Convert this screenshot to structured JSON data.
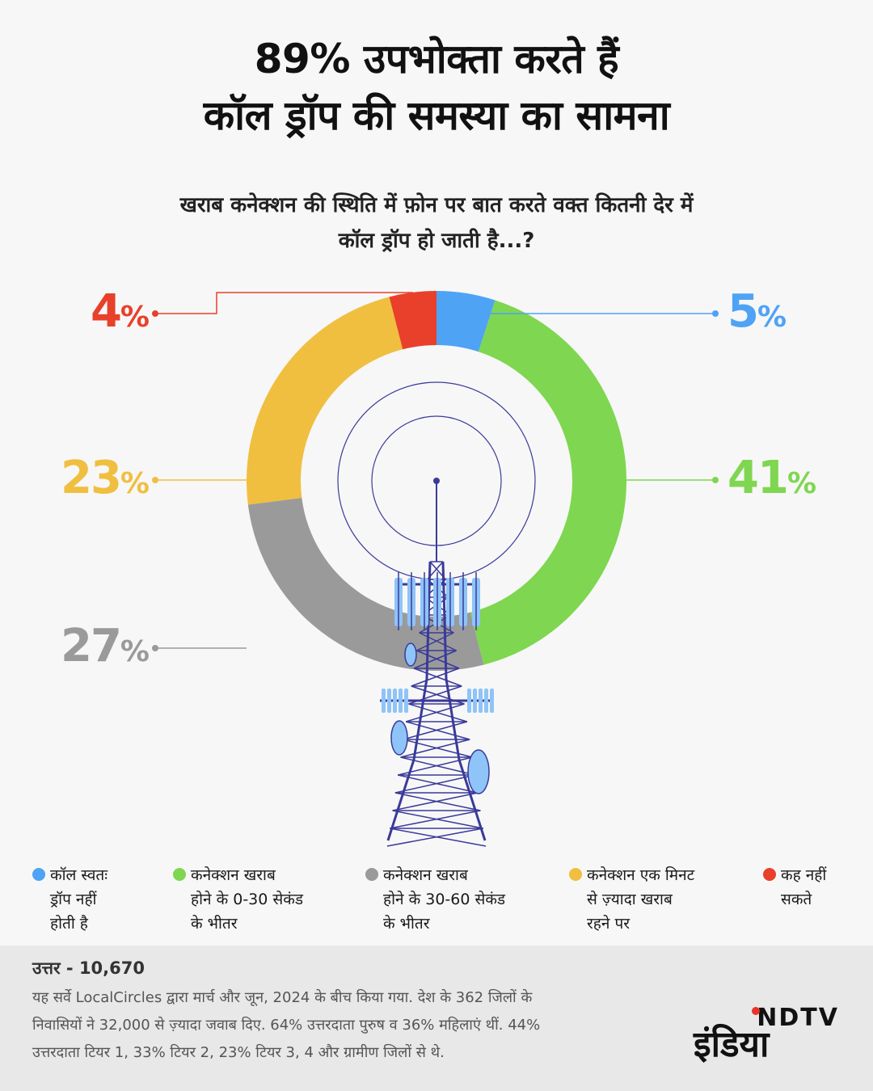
{
  "header": {
    "title_line1": "89% उपभोक्ता करते हैं",
    "title_line2": "कॉल ड्रॉप की समस्या का सामना",
    "subtitle_line1": "खराब कनेक्शन की स्थिति में फ़ोन पर बात करते वक्त कितनी देर में",
    "subtitle_line2": "कॉल ड्रॉप हो जाती है...?"
  },
  "chart_data": {
    "type": "pie",
    "donut": true,
    "unit": "%",
    "slices": [
      {
        "label": "कॉल स्वतः ड्रॉप नहीं होती है",
        "value": 5,
        "display": "5",
        "color": "#4ea3f5"
      },
      {
        "label": "कनेक्शन खराब होने के 0-30 सेकंड के भीतर",
        "value": 41,
        "display": "41",
        "color": "#7fd650"
      },
      {
        "label": "कनेक्शन खराब होने के 30-60 सेकंड के भीतर",
        "value": 27,
        "display": "27",
        "color": "#9a9a9a"
      },
      {
        "label": "कनेक्शन एक मिनट से ज़्यादा खराब रहने पर",
        "value": 23,
        "display": "23",
        "color": "#f0bf40"
      },
      {
        "label": "कह नहीं सकते",
        "value": 4,
        "display": "4",
        "color": "#e8402a"
      }
    ],
    "legend_position": "bottom"
  },
  "legend": [
    {
      "label": "कॉल स्वतः\nड्रॉप नहीं\nहोती है",
      "color": "#4ea3f5"
    },
    {
      "label": "कनेक्शन खराब\nहोने के 0-30 सेकंड\nके भीतर",
      "color": "#7fd650"
    },
    {
      "label": "कनेक्शन खराब\nहोने के 30-60 सेकंड\nके भीतर",
      "color": "#9a9a9a"
    },
    {
      "label": "कनेक्शन एक मिनट\nसे ज़्यादा खराब\nरहने पर",
      "color": "#f0bf40"
    },
    {
      "label": "कह नहीं\nसकते",
      "color": "#e8402a"
    }
  ],
  "footer": {
    "respondents": "उत्तर - 10,670",
    "note_line1": "यह सर्वे LocalCircles द्वारा मार्च और जून, 2024 के बीच किया गया. देश के 362 जिलों के",
    "note_line2": "निवासियों ने 32,000 से ज़्यादा जवाब दिए. 64% उत्तरदाता पुरुष व 36% महिलाएं थीं. 44%",
    "note_line3": "उत्तरदाता टियर 1, 33% टियर 2, 23% टियर 3, 4 और ग्रामीण जिलों से थे."
  },
  "logo": {
    "top_text": "NDTV",
    "main_text": "इंडिया"
  },
  "colors": {
    "tower": "#3a3a9a",
    "antenna": "#8ec4f7",
    "background": "#f7f7f7"
  },
  "icons": [
    "telecom-tower-icon"
  ]
}
